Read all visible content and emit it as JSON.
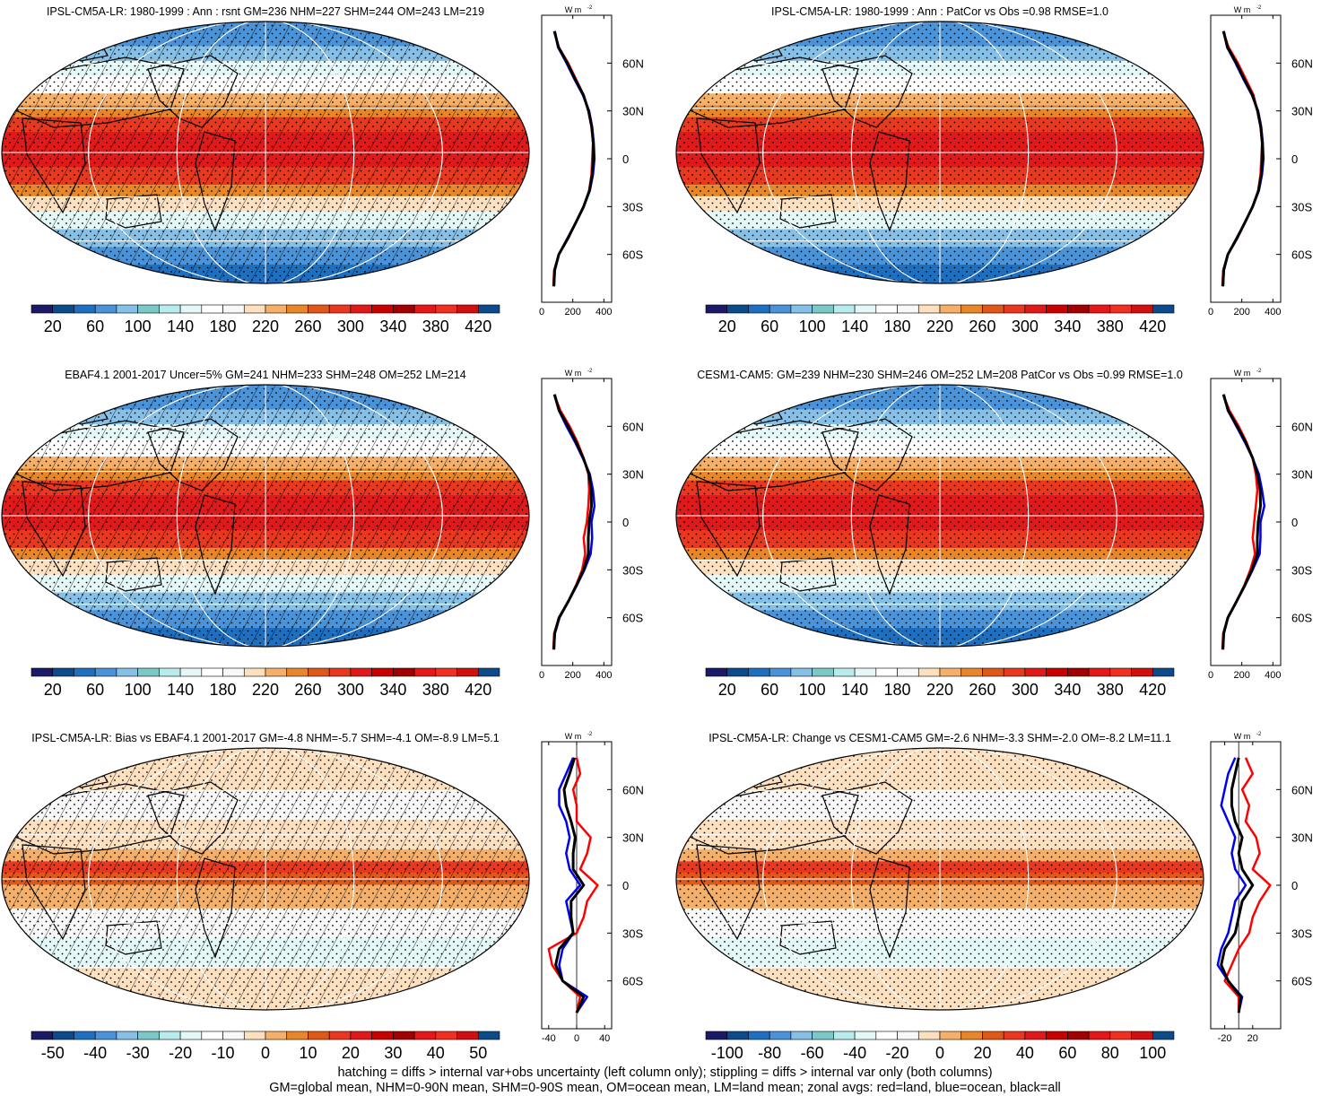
{
  "colors": {
    "absolute_scale": [
      "#1a1a66",
      "#0d4a8a",
      "#1f6fc0",
      "#4a93d8",
      "#86c0e6",
      "#7cc8c8",
      "#b8ecec",
      "#e4f8f8",
      "#ffffff",
      "#f8f8f8",
      "#fce0c0",
      "#f4b06a",
      "#e8862a",
      "#e05818",
      "#e83820",
      "#e01a1a",
      "#c80000",
      "#a00000",
      "#e41818",
      "#f03020",
      "#d01010",
      "#0d4a8a"
    ],
    "diff_scale": [
      "#1a1a66",
      "#0d4a8a",
      "#1f6fc0",
      "#4a93d8",
      "#86c0e6",
      "#7cc8c8",
      "#b8ecec",
      "#e4f8f8",
      "#ffffff",
      "#f8f8f8",
      "#fce0c0",
      "#f4b06a",
      "#e8862a",
      "#e05818",
      "#e83820",
      "#e01a1a",
      "#c80000",
      "#a00000",
      "#e41818",
      "#f03020",
      "#d01010",
      "#0d4a8a"
    ],
    "zonal_land": "#ff0000",
    "zonal_ocean": "#0000ee",
    "zonal_all": "#000000",
    "land_outline": "#000000",
    "grid_lines": "#ffffff"
  },
  "legend_text": {
    "units": "W m",
    "units_exp": "-2"
  },
  "chart_data": [
    {
      "type": "heatmap",
      "title": "IPSL-CM5A-LR: 1980-1999 : Ann : rsnt GM=236 NHM=227 SHM=244 OM=243 LM=219",
      "hatching": true,
      "stippling": true,
      "field": "absolute",
      "colorbar_labels": [
        "20",
        "60",
        "100",
        "140",
        "180",
        "220",
        "260",
        "300",
        "340",
        "380",
        "420"
      ],
      "lat_ticks": [
        "60N",
        "30N",
        "0",
        "30S",
        "60S"
      ],
      "zonal_xticks": [
        "0",
        "200",
        "400"
      ],
      "zonal_xlim": [
        0,
        450
      ],
      "zonal_mean": {
        "lat": [
          80,
          70,
          60,
          50,
          40,
          30,
          20,
          10,
          0,
          -10,
          -20,
          -30,
          -40,
          -50,
          -60,
          -70,
          -80
        ],
        "land": [
          80,
          110,
          170,
          220,
          270,
          300,
          320,
          330,
          325,
          320,
          305,
          270,
          220,
          170,
          110,
          80,
          75
        ],
        "ocean": [
          85,
          105,
          160,
          210,
          265,
          305,
          325,
          335,
          340,
          330,
          310,
          270,
          220,
          165,
          110,
          85,
          80
        ],
        "all": [
          82,
          108,
          165,
          215,
          268,
          302,
          322,
          332,
          333,
          325,
          307,
          270,
          220,
          168,
          110,
          83,
          78
        ]
      }
    },
    {
      "type": "heatmap",
      "title": "IPSL-CM5A-LR: 1980-1999 : Ann : PatCor vs Obs =0.98 RMSE=1.0",
      "hatching": false,
      "stippling": true,
      "field": "absolute",
      "colorbar_labels": [
        "20",
        "60",
        "100",
        "140",
        "180",
        "220",
        "260",
        "300",
        "340",
        "380",
        "420"
      ],
      "lat_ticks": [
        "60N",
        "30N",
        "0",
        "30S",
        "60S"
      ],
      "zonal_xticks": [
        "0",
        "200",
        "400"
      ],
      "zonal_xlim": [
        0,
        450
      ],
      "zonal_mean": {
        "lat": [
          80,
          70,
          60,
          50,
          40,
          30,
          20,
          10,
          0,
          -10,
          -20,
          -30,
          -40,
          -50,
          -60,
          -70,
          -80
        ],
        "land": [
          80,
          115,
          175,
          225,
          275,
          300,
          320,
          330,
          325,
          320,
          305,
          270,
          220,
          170,
          110,
          80,
          75
        ],
        "ocean": [
          85,
          105,
          160,
          210,
          265,
          305,
          325,
          335,
          340,
          330,
          310,
          270,
          220,
          165,
          110,
          85,
          80
        ],
        "all": [
          82,
          108,
          165,
          215,
          268,
          302,
          322,
          332,
          333,
          325,
          307,
          270,
          220,
          168,
          110,
          83,
          78
        ]
      }
    },
    {
      "type": "heatmap",
      "title": "EBAF4.1 2001-2017 Uncer=5% GM=241 NHM=233 SHM=248 OM=252 LM=214",
      "hatching": true,
      "stippling": true,
      "field": "absolute",
      "colorbar_labels": [
        "20",
        "60",
        "100",
        "140",
        "180",
        "220",
        "260",
        "300",
        "340",
        "380",
        "420"
      ],
      "lat_ticks": [
        "60N",
        "30N",
        "0",
        "30S",
        "60S"
      ],
      "zonal_xticks": [
        "0",
        "200",
        "400"
      ],
      "zonal_xlim": [
        0,
        450
      ],
      "zonal_mean": {
        "lat": [
          80,
          70,
          60,
          50,
          40,
          30,
          20,
          10,
          0,
          -10,
          -20,
          -30,
          -40,
          -50,
          -60,
          -70,
          -80
        ],
        "land": [
          80,
          120,
          180,
          230,
          270,
          300,
          305,
          300,
          290,
          270,
          280,
          260,
          220,
          170,
          110,
          80,
          75
        ],
        "ocean": [
          85,
          110,
          160,
          215,
          265,
          310,
          330,
          340,
          320,
          325,
          315,
          275,
          225,
          170,
          115,
          85,
          80
        ],
        "all": [
          82,
          112,
          170,
          222,
          268,
          305,
          318,
          320,
          305,
          300,
          300,
          270,
          222,
          170,
          112,
          83,
          78
        ]
      }
    },
    {
      "type": "heatmap",
      "title": "CESM1-CAM5: GM=239 NHM=230 SHM=246 OM=252 LM=208 PatCor vs Obs =0.99 RMSE=1.0",
      "hatching": false,
      "stippling": true,
      "field": "absolute",
      "colorbar_labels": [
        "20",
        "60",
        "100",
        "140",
        "180",
        "220",
        "260",
        "300",
        "340",
        "380",
        "420"
      ],
      "lat_ticks": [
        "60N",
        "30N",
        "0",
        "30S",
        "60S"
      ],
      "zonal_xticks": [
        "0",
        "200",
        "400"
      ],
      "zonal_xlim": [
        0,
        450
      ],
      "zonal_mean": {
        "lat": [
          80,
          70,
          60,
          50,
          40,
          30,
          20,
          10,
          0,
          -10,
          -20,
          -30,
          -40,
          -50,
          -60,
          -70,
          -80
        ],
        "land": [
          80,
          120,
          180,
          230,
          270,
          290,
          300,
          290,
          280,
          270,
          285,
          255,
          215,
          165,
          110,
          80,
          75
        ],
        "ocean": [
          85,
          110,
          165,
          220,
          270,
          310,
          330,
          345,
          320,
          320,
          315,
          270,
          220,
          165,
          110,
          85,
          80
        ],
        "all": [
          82,
          112,
          170,
          225,
          270,
          300,
          318,
          320,
          305,
          300,
          300,
          265,
          218,
          165,
          110,
          83,
          78
        ]
      }
    },
    {
      "type": "heatmap",
      "title": "IPSL-CM5A-LR: Bias vs EBAF4.1 2001-2017 GM=-4.8 NHM=-5.7 SHM=-4.1 OM=-8.9 LM=5.1",
      "hatching": true,
      "stippling": true,
      "field": "difference",
      "colorbar_labels": [
        "-50",
        "-40",
        "-30",
        "-20",
        "-10",
        "0",
        "10",
        "20",
        "30",
        "40",
        "50"
      ],
      "lat_ticks": [
        "60N",
        "30N",
        "0",
        "30S",
        "60S"
      ],
      "zonal_xticks": [
        "-40",
        "0",
        "40"
      ],
      "zonal_xlim": [
        -50,
        50
      ],
      "zonal_mean": {
        "lat": [
          80,
          70,
          60,
          50,
          40,
          30,
          20,
          10,
          0,
          -10,
          -20,
          -30,
          -40,
          -50,
          -60,
          -70,
          -80
        ],
        "land": [
          0,
          5,
          -5,
          0,
          0,
          20,
          15,
          5,
          30,
          15,
          10,
          0,
          -40,
          -35,
          -20,
          5,
          0
        ],
        "ocean": [
          -5,
          -15,
          -25,
          -25,
          -15,
          -10,
          -15,
          -10,
          5,
          -15,
          -10,
          -5,
          -20,
          -25,
          -20,
          15,
          0
        ],
        "all": [
          -3,
          -10,
          -18,
          -15,
          -8,
          -2,
          -5,
          -5,
          10,
          -8,
          -8,
          -5,
          -25,
          -30,
          -20,
          10,
          0
        ]
      }
    },
    {
      "type": "heatmap",
      "title": "IPSL-CM5A-LR: Change vs CESM1-CAM5 GM=-2.6 NHM=-3.3 SHM=-2.0 OM=-8.2 LM=11.1",
      "hatching": false,
      "stippling": true,
      "field": "difference",
      "colorbar_labels": [
        "-100",
        "-80",
        "-60",
        "-40",
        "-20",
        "0",
        "20",
        "40",
        "60",
        "80",
        "100"
      ],
      "lat_ticks": [
        "60N",
        "30N",
        "0",
        "30S",
        "60S"
      ],
      "zonal_xticks": [
        "-20",
        "20"
      ],
      "zonal_xlim": [
        -40,
        60
      ],
      "zonal_mean": {
        "lat": [
          80,
          70,
          60,
          50,
          40,
          30,
          20,
          10,
          0,
          -10,
          -20,
          -30,
          -40,
          -50,
          -60,
          -70,
          -80
        ],
        "land": [
          10,
          20,
          5,
          15,
          10,
          25,
          30,
          20,
          45,
          30,
          20,
          15,
          0,
          -10,
          -20,
          0,
          0
        ],
        "ocean": [
          -5,
          -15,
          -20,
          -25,
          -15,
          -5,
          -10,
          -5,
          10,
          -5,
          -10,
          -15,
          -25,
          -30,
          -15,
          5,
          0
        ],
        "all": [
          0,
          -5,
          -10,
          -10,
          -5,
          5,
          0,
          5,
          20,
          5,
          0,
          -5,
          -20,
          -25,
          -15,
          3,
          0
        ]
      }
    }
  ],
  "footnotes": [
    "hatching = diffs > internal var+obs uncertainty (left column only); stippling = diffs > internal var only (both columns)",
    "GM=global mean, NHM=0-90N mean, SHM=0-90S mean, OM=ocean mean, LM=land mean; zonal avgs: red=land, blue=ocean, black=all"
  ]
}
